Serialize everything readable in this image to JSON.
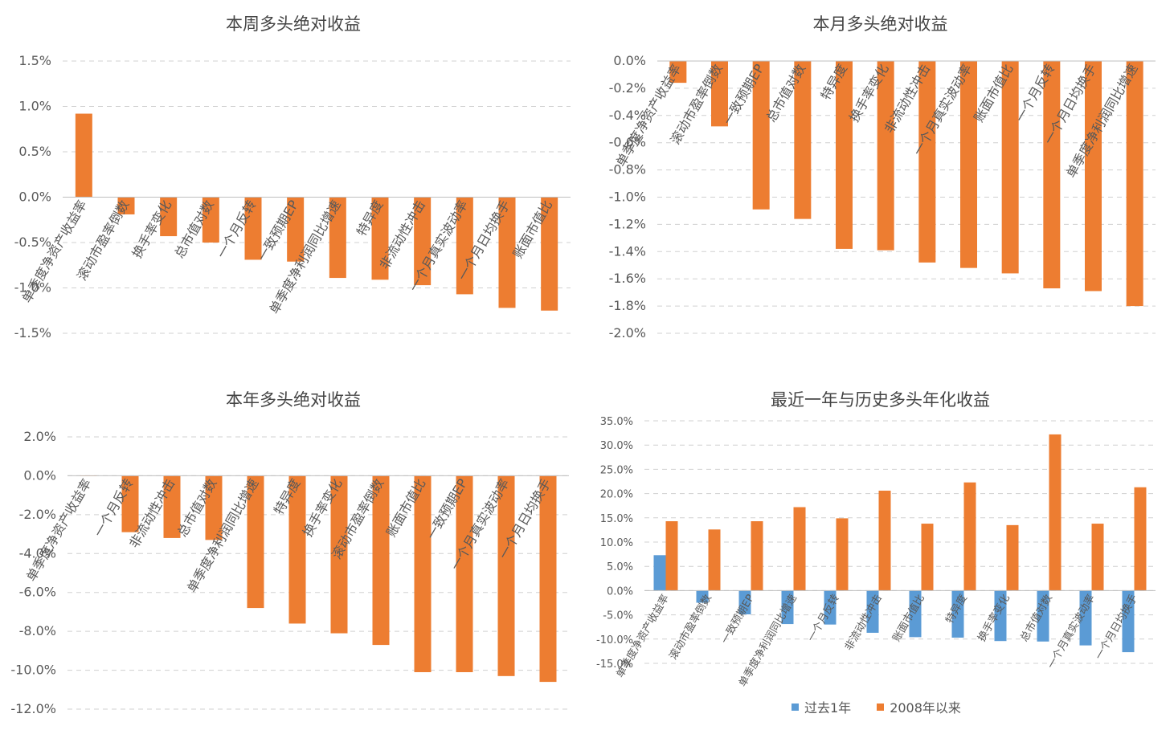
{
  "colors": {
    "long": "#ED7D31",
    "past": "#5B9BD5",
    "grid": "#d0d0d0",
    "axis": "#595959"
  },
  "chart_data": [
    {
      "type": "bar",
      "title": "本周多头绝对收益",
      "ylim": [
        -1.5,
        1.5
      ],
      "yticks": [
        "1.5%",
        "1.0%",
        "0.5%",
        "0.0%",
        "-0.5%",
        "-1.0%",
        "-1.5%"
      ],
      "grid": true,
      "categories": [
        "单季度净资产收益率",
        "滚动市盈率倒数",
        "换手率变化",
        "总市值对数",
        "一个月反转",
        "一致预期EP",
        "单季度净利润同比增速",
        "特异度",
        "非流动性冲击",
        "一个月真实波动率",
        "一个月日均换手",
        "账面市值比"
      ],
      "values": [
        0.92,
        -0.19,
        -0.43,
        -0.5,
        -0.69,
        -0.71,
        -0.89,
        -0.91,
        -0.97,
        -1.07,
        -1.22,
        -1.25
      ]
    },
    {
      "type": "bar",
      "title": "本月多头绝对收益",
      "ylim": [
        -2.0,
        0.0
      ],
      "yticks": [
        "0.0%",
        "-0.2%",
        "-0.4%",
        "-0.6%",
        "-0.8%",
        "-1.0%",
        "-1.2%",
        "-1.4%",
        "-1.6%",
        "-1.8%",
        "-2.0%"
      ],
      "grid": true,
      "categories": [
        "单季度净资产收益率",
        "滚动市盈率倒数",
        "一致预期EP",
        "总市值对数",
        "特异度",
        "换手率变化",
        "非流动性冲击",
        "一个月真实波动率",
        "账面市值比",
        "一个月反转",
        "一个月日均换手",
        "单季度净利润同比增速"
      ],
      "values": [
        -0.16,
        -0.48,
        -1.09,
        -1.16,
        -1.38,
        -1.39,
        -1.48,
        -1.52,
        -1.56,
        -1.67,
        -1.69,
        -1.8
      ]
    },
    {
      "type": "bar",
      "title": "本年多头绝对收益",
      "ylim": [
        -12.0,
        2.0
      ],
      "yticks": [
        "2.0%",
        "0.0%",
        "-2.0%",
        "-4.0%",
        "-6.0%",
        "-8.0%",
        "-10.0%",
        "-12.0%"
      ],
      "grid": true,
      "categories": [
        "单季度净资产收益率",
        "一个月反转",
        "非流动性冲击",
        "总市值对数",
        "单季度净利润同比增速",
        "特异度",
        "换手率变化",
        "滚动市盈率倒数",
        "账面市值比",
        "一致预期EP",
        "一个月真实波动率",
        "一个月日均换手"
      ],
      "values": [
        0.0,
        -2.9,
        -3.2,
        -3.3,
        -6.8,
        -7.6,
        -8.1,
        -8.7,
        -10.1,
        -10.1,
        -10.3,
        -10.6
      ]
    },
    {
      "type": "bar",
      "title": "最近一年与历史多头年化收益",
      "ylim": [
        -15.0,
        35.0
      ],
      "yticks": [
        "35.0%",
        "30.0%",
        "25.0%",
        "20.0%",
        "15.0%",
        "10.0%",
        "5.0%",
        "0.0%",
        "-5.0%",
        "-10.0%",
        "-15.0%"
      ],
      "grid": true,
      "legend": "bottom",
      "categories": [
        "单季度净资产收益率",
        "滚动市盈率倒数",
        "一致预期EP",
        "单季度净利润同比增速",
        "一个月反转",
        "非流动性冲击",
        "账面市值比",
        "特异度",
        "换手率变化",
        "总市值对数",
        "一个月真实波动率",
        "一个月日均换手"
      ],
      "series": [
        {
          "name": "过去1年",
          "values": [
            7.3,
            -2.5,
            -4.9,
            -6.9,
            -7.0,
            -8.7,
            -9.6,
            -9.7,
            -10.4,
            -10.5,
            -11.3,
            -12.7
          ]
        },
        {
          "name": "2008年以来",
          "values": [
            14.3,
            12.6,
            14.3,
            17.2,
            14.9,
            20.6,
            13.8,
            22.3,
            13.5,
            32.2,
            13.8,
            21.3
          ]
        }
      ]
    }
  ]
}
